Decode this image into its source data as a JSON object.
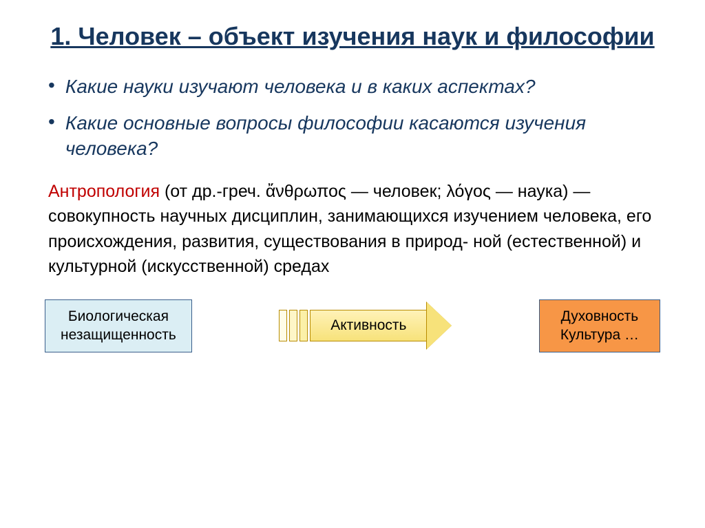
{
  "title": "1. Человек – объект изучения наук и философии",
  "bullets": [
    "Какие науки изучают человека и в каких аспектах?",
    "Какие основные вопросы философии касаются изучения человека?"
  ],
  "definition": {
    "term": "Антропология",
    "body": " (от др.-греч. ἄνθρωπος — человек; λόγος — наука) — совокупность научных дисциплин, занимающихся изучением человека, его происхождения, развития, существования в природ- ной (естественной) и культурной (искусственной) средах"
  },
  "diagram": {
    "left_box_line1": "Биологическая",
    "left_box_line2": "незащищенность",
    "arrow_label": "Активность",
    "right_box_line1": "Духовность",
    "right_box_line2": "Культура …",
    "colors": {
      "left_bg": "#dbeef4",
      "left_border": "#385d8a",
      "arrow_fill": "#f7e27a",
      "arrow_border": "#b88b00",
      "right_bg": "#f79646",
      "right_border": "#385d8a"
    },
    "arrow_segments_bg": [
      "#fffde8",
      "#fef6c8",
      "#fbf0a8"
    ]
  },
  "style": {
    "title_color": "#17375e",
    "bullet_color": "#17375e",
    "term_color": "#c00000",
    "body_color": "#000000",
    "background": "#ffffff"
  }
}
